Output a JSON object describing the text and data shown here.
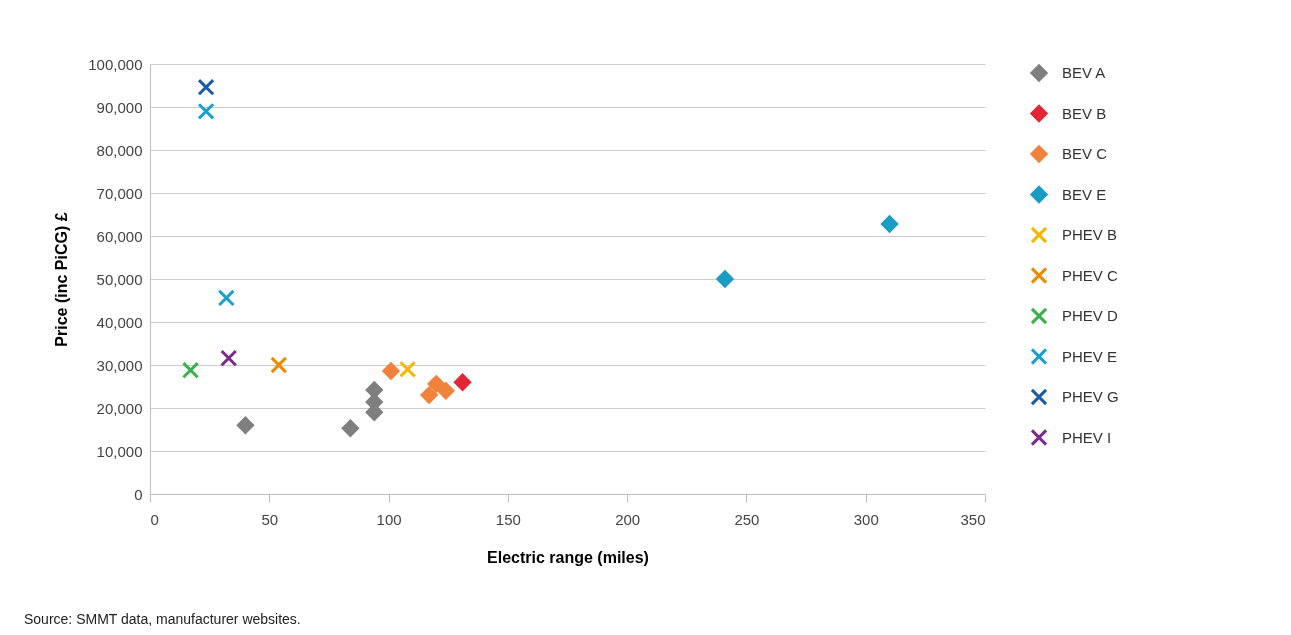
{
  "chart_data": {
    "type": "scatter",
    "xlabel": "Electric range (miles)",
    "ylabel": "Price (inc PiCG) £",
    "xlim": [
      0,
      350
    ],
    "xticks": [
      0,
      50,
      100,
      150,
      200,
      250,
      300,
      350
    ],
    "ylim": [
      0,
      100000
    ],
    "yticks": [
      {
        "value": 0,
        "label": "0"
      },
      {
        "value": 10000,
        "label": "10,000"
      },
      {
        "value": 20000,
        "label": "20,000"
      },
      {
        "value": 30000,
        "label": "30,000"
      },
      {
        "value": 40000,
        "label": "40,000"
      },
      {
        "value": 50000,
        "label": "50,000"
      },
      {
        "value": 60000,
        "label": "60,000"
      },
      {
        "value": 70000,
        "label": "70,000"
      },
      {
        "value": 80000,
        "label": "80,000"
      },
      {
        "value": 90000,
        "label": "90,000"
      },
      {
        "value": 100000,
        "label": "100,000"
      }
    ],
    "grid": "y",
    "legend": "right",
    "series": [
      {
        "name": "BEV A",
        "color": "#7f7f7f",
        "marker": "diamond",
        "x": [
          40,
          84,
          94,
          94,
          94
        ],
        "values": [
          16000,
          15300,
          19000,
          21400,
          24200
        ]
      },
      {
        "name": "BEV B",
        "color": "#e32636",
        "marker": "diamond",
        "x": [
          131
        ],
        "values": [
          26000
        ]
      },
      {
        "name": "BEV C",
        "color": "#f0823c",
        "marker": "diamond",
        "x": [
          101,
          117,
          120,
          124
        ],
        "values": [
          28600,
          23000,
          25600,
          24000
        ]
      },
      {
        "name": "BEV E",
        "color": "#1a9cc4",
        "marker": "diamond",
        "x": [
          241,
          310
        ],
        "values": [
          50000,
          62800
        ]
      },
      {
        "name": "PHEV B",
        "color": "#f5b800",
        "marker": "cross",
        "x": [
          108
        ],
        "values": [
          29000
        ]
      },
      {
        "name": "PHEV C",
        "color": "#ee8a00",
        "marker": "cross",
        "x": [
          54
        ],
        "values": [
          30000
        ]
      },
      {
        "name": "PHEV D",
        "color": "#3ab04a",
        "marker": "cross",
        "x": [
          17
        ],
        "values": [
          28800
        ]
      },
      {
        "name": "PHEV E",
        "color": "#1aa0d0",
        "marker": "cross",
        "x": [
          23.5,
          32
        ],
        "values": [
          89000,
          45600
        ]
      },
      {
        "name": "PHEV G",
        "color": "#1a5aa8",
        "marker": "cross",
        "x": [
          23.5
        ],
        "values": [
          94600
        ]
      },
      {
        "name": "PHEV I",
        "color": "#7a2c8c",
        "marker": "cross",
        "x": [
          33
        ],
        "values": [
          31600
        ]
      }
    ],
    "annotations": [
      "Source: SMMT data, manufacturer websites."
    ]
  }
}
